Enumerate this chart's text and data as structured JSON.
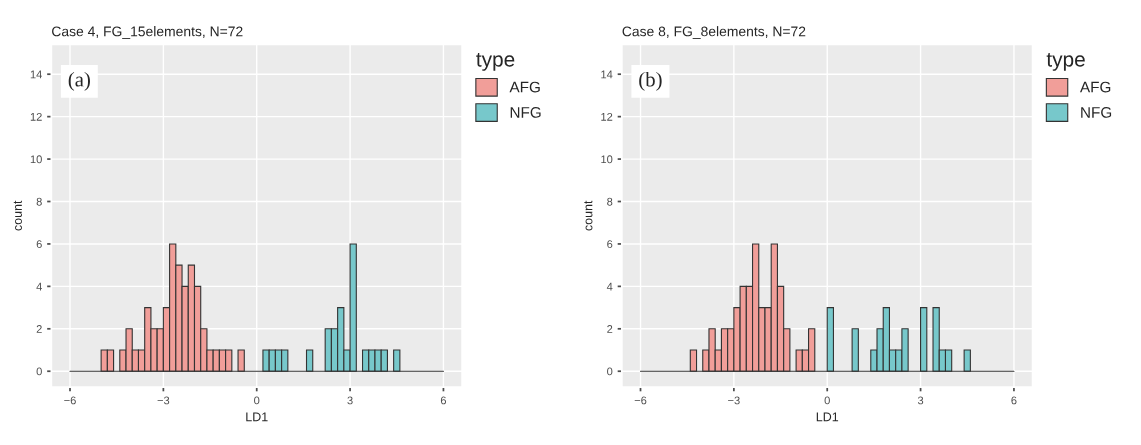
{
  "chart_data": [
    {
      "type": "histogram",
      "title": "Case 4, FG_15elements, N=72",
      "xlabel": "LD1",
      "ylabel": "count",
      "legend_title": "type",
      "annotations": [
        "(a)"
      ],
      "bins": [
        -6.0,
        -5.8,
        -5.6,
        -5.4,
        -5.2,
        -5.0,
        -4.8,
        -4.6,
        -4.4,
        -4.2,
        -4.0,
        -3.8,
        -3.6,
        -3.4,
        -3.2,
        -3.0,
        -2.8,
        -2.6,
        -2.4,
        -2.2,
        -2.0,
        -1.8,
        -1.6,
        -1.4,
        -1.2,
        -1.0,
        -0.8,
        -0.6,
        -0.4,
        -0.2,
        0.0,
        0.2,
        0.4,
        0.6,
        0.8,
        1.0,
        1.2,
        1.4,
        1.6,
        1.8,
        2.0,
        2.2,
        2.4,
        2.6,
        2.8,
        3.0,
        3.2,
        3.4,
        3.6,
        3.8,
        4.0,
        4.2,
        4.4,
        4.6,
        4.8,
        5.0,
        5.2,
        5.4,
        5.6,
        5.8,
        6.0
      ],
      "series": [
        {
          "name": "AFG",
          "color": "#f19e99",
          "values": [
            0,
            0,
            0,
            0,
            0,
            1,
            1,
            0,
            1,
            2,
            1,
            1,
            3,
            2,
            2,
            3,
            6,
            5,
            4,
            5,
            4,
            2,
            1,
            1,
            1,
            1,
            0,
            1,
            0,
            0,
            0,
            0,
            0,
            0,
            0,
            0,
            0,
            0,
            0,
            0,
            0,
            0,
            0,
            0,
            0,
            0,
            0,
            0,
            0,
            0,
            0,
            0,
            0,
            0,
            0,
            0,
            0,
            0,
            0,
            0
          ]
        },
        {
          "name": "NFG",
          "color": "#77c8cb",
          "values": [
            0,
            0,
            0,
            0,
            0,
            0,
            0,
            0,
            0,
            0,
            0,
            0,
            0,
            0,
            0,
            0,
            0,
            0,
            0,
            0,
            0,
            0,
            0,
            0,
            0,
            0,
            0,
            0,
            0,
            0,
            0,
            1,
            1,
            1,
            1,
            0,
            0,
            0,
            1,
            0,
            0,
            2,
            2,
            3,
            1,
            6,
            0,
            1,
            1,
            1,
            1,
            0,
            1,
            0,
            0,
            0,
            0,
            0,
            0,
            0
          ]
        }
      ],
      "xlim": [
        -6.6,
        6.6
      ],
      "ylim": [
        -0.75,
        15.4
      ],
      "xticks": [
        -6,
        -3,
        0,
        3,
        6
      ],
      "yticks": [
        0,
        2,
        4,
        6,
        8,
        10,
        12,
        14
      ],
      "grid": true,
      "legend": "top right"
    },
    {
      "type": "histogram",
      "title": "Case 8, FG_8elements, N=72",
      "xlabel": "LD1",
      "ylabel": "count",
      "legend_title": "type",
      "annotations": [
        "(b)"
      ],
      "bins": [
        -6.0,
        -5.8,
        -5.6,
        -5.4,
        -5.2,
        -5.0,
        -4.8,
        -4.6,
        -4.4,
        -4.2,
        -4.0,
        -3.8,
        -3.6,
        -3.4,
        -3.2,
        -3.0,
        -2.8,
        -2.6,
        -2.4,
        -2.2,
        -2.0,
        -1.8,
        -1.6,
        -1.4,
        -1.2,
        -1.0,
        -0.8,
        -0.6,
        -0.4,
        -0.2,
        0.0,
        0.2,
        0.4,
        0.6,
        0.8,
        1.0,
        1.2,
        1.4,
        1.6,
        1.8,
        2.0,
        2.2,
        2.4,
        2.6,
        2.8,
        3.0,
        3.2,
        3.4,
        3.6,
        3.8,
        4.0,
        4.2,
        4.4,
        4.6,
        4.8,
        5.0,
        5.2,
        5.4,
        5.6,
        5.8,
        6.0
      ],
      "series": [
        {
          "name": "AFG",
          "color": "#f19e99",
          "values": [
            0,
            0,
            0,
            0,
            0,
            0,
            0,
            0,
            1,
            0,
            1,
            2,
            1,
            2,
            2,
            3,
            4,
            4,
            6,
            3,
            3,
            6,
            4,
            2,
            0,
            1,
            1,
            2,
            0,
            0,
            0,
            0,
            0,
            0,
            0,
            0,
            0,
            0,
            0,
            0,
            0,
            0,
            0,
            0,
            0,
            0,
            0,
            0,
            0,
            0,
            0,
            0,
            0,
            0,
            0,
            0,
            0,
            0,
            0,
            0
          ]
        },
        {
          "name": "NFG",
          "color": "#77c8cb",
          "values": [
            0,
            0,
            0,
            0,
            0,
            0,
            0,
            0,
            0,
            0,
            0,
            0,
            0,
            0,
            0,
            0,
            0,
            0,
            0,
            0,
            0,
            0,
            0,
            0,
            0,
            0,
            0,
            0,
            0,
            0,
            3,
            0,
            0,
            0,
            2,
            0,
            0,
            1,
            2,
            3,
            1,
            1,
            2,
            0,
            0,
            3,
            0,
            3,
            1,
            1,
            0,
            0,
            1,
            0,
            0,
            0,
            0,
            0,
            0,
            0
          ]
        }
      ],
      "xlim": [
        -6.6,
        6.6
      ],
      "ylim": [
        -0.75,
        15.4
      ],
      "xticks": [
        -6,
        -3,
        0,
        3,
        6
      ],
      "yticks": [
        0,
        2,
        4,
        6,
        8,
        10,
        12,
        14
      ],
      "grid": true,
      "legend": "top right"
    }
  ]
}
